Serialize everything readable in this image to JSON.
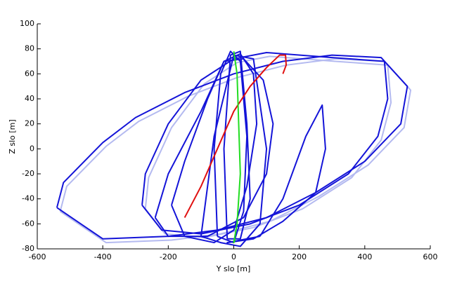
{
  "chart_data": {
    "type": "line",
    "xlabel": "Y slo [m]",
    "ylabel": "Z slo [m]",
    "xlim": [
      -600,
      600
    ],
    "xticks": [
      -600,
      -400,
      -200,
      0,
      200,
      400,
      600
    ],
    "ylim": [
      -80,
      100
    ],
    "yticks": [
      -80,
      -60,
      -40,
      -20,
      0,
      20,
      40,
      60,
      80,
      100
    ],
    "series": [
      {
        "color": "#b4baf0",
        "x": [
          -530,
          -510,
          -390,
          -290,
          -140,
          10,
          160,
          310,
          460,
          540,
          520,
          410,
          260,
          110,
          -40,
          -190,
          -390,
          -530
        ],
        "values": [
          -50,
          -30,
          2,
          22,
          42,
          57,
          67,
          72,
          70,
          47,
          17,
          -13,
          -38,
          -58,
          -68,
          -73,
          -75,
          -50
        ]
      },
      {
        "color": "#b4baf0",
        "x": [
          -270,
          -260,
          -190,
          -90,
          10,
          110,
          310,
          470,
          480,
          450,
          360,
          210,
          60,
          -90,
          -210,
          -270
        ],
        "values": [
          -48,
          -23,
          17,
          52,
          69,
          74,
          70,
          67,
          37,
          7,
          -23,
          -48,
          -63,
          -71,
          -68,
          -48
        ]
      },
      {
        "color": "#1414d8",
        "x": [
          -540,
          -520,
          -400,
          -300,
          -150,
          0,
          150,
          300,
          450,
          530,
          510,
          400,
          250,
          100,
          -50,
          -200,
          -400,
          -540
        ],
        "values": [
          -47,
          -27,
          5,
          25,
          45,
          60,
          70,
          75,
          73,
          50,
          20,
          -10,
          -35,
          -55,
          -65,
          -70,
          -72,
          -47
        ]
      },
      {
        "color": "#1414d8",
        "x": [
          -280,
          -270,
          -200,
          -100,
          0,
          100,
          300,
          460,
          470,
          440,
          350,
          200,
          50,
          -100,
          -220,
          -280
        ],
        "values": [
          -45,
          -20,
          20,
          55,
          72,
          77,
          73,
          70,
          40,
          10,
          -20,
          -45,
          -60,
          -68,
          -65,
          -45
        ]
      },
      {
        "color": "#1414d8",
        "x": [
          -240,
          -200,
          -100,
          -30,
          30,
          90,
          120,
          100,
          30,
          -80,
          -200,
          -240
        ],
        "values": [
          -55,
          -20,
          30,
          70,
          72,
          55,
          20,
          -20,
          -55,
          -70,
          -70,
          -55
        ]
      },
      {
        "color": "#1414d8",
        "x": [
          -190,
          -150,
          -80,
          -30,
          20,
          60,
          70,
          40,
          0,
          -60,
          -150,
          -190
        ],
        "values": [
          -45,
          -10,
          40,
          70,
          76,
          60,
          20,
          -30,
          -65,
          -75,
          -70,
          -45
        ]
      },
      {
        "color": "#1414d8",
        "x": [
          -50,
          -60,
          -40,
          -10,
          20,
          40,
          30,
          0,
          -50
        ],
        "values": [
          -70,
          0,
          60,
          78,
          70,
          10,
          -50,
          -75,
          -70
        ]
      },
      {
        "color": "#1414d8",
        "x": [
          -20,
          -30,
          -10,
          20,
          40,
          50,
          20,
          -20
        ],
        "values": [
          -72,
          0,
          75,
          78,
          20,
          -40,
          -72,
          -72
        ]
      },
      {
        "color": "#1414d8",
        "x": [
          80,
          150,
          220,
          270,
          280,
          250,
          150,
          60,
          -20,
          80
        ],
        "values": [
          -70,
          -40,
          10,
          35,
          0,
          -35,
          -58,
          -72,
          -75,
          -70
        ]
      },
      {
        "color": "#1414d8",
        "x": [
          -100,
          -60,
          0,
          60,
          100,
          80,
          20,
          -40,
          -100
        ],
        "values": [
          -70,
          10,
          75,
          72,
          0,
          -60,
          -78,
          -75,
          -70
        ]
      },
      {
        "color": "#e01010",
        "x": [
          -150,
          -100,
          -50,
          0,
          50,
          100,
          140,
          158,
          160,
          150
        ],
        "values": [
          -55,
          -30,
          0,
          30,
          50,
          65,
          75,
          75,
          67,
          60
        ]
      },
      {
        "color": "#22dd22",
        "x": [
          0,
          10,
          15,
          20,
          10,
          0,
          5
        ],
        "values": [
          78,
          60,
          20,
          -20,
          -60,
          -75,
          -72
        ]
      }
    ]
  }
}
